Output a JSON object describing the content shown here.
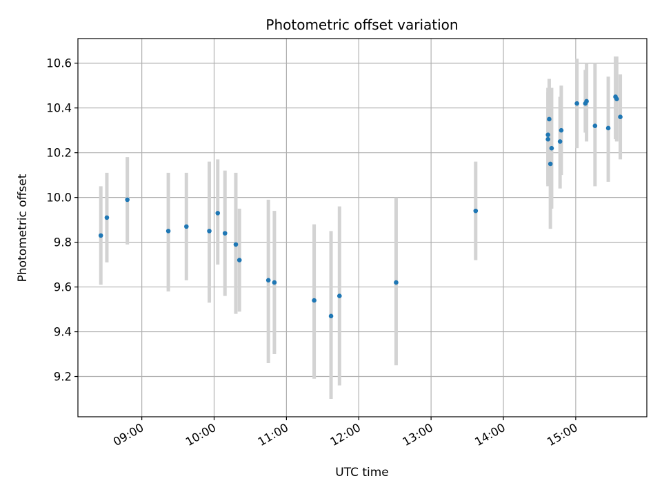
{
  "chart_data": {
    "type": "scatter",
    "title": "Photometric offset variation",
    "xlabel": "UTC time",
    "ylabel": "Photometric offset",
    "grid": true,
    "xlim": [
      "08:07",
      "15:59"
    ],
    "ylim": [
      9.02,
      10.71
    ],
    "x_ticks": [
      "09:00",
      "10:00",
      "11:00",
      "12:00",
      "13:00",
      "14:00",
      "15:00"
    ],
    "y_ticks": [
      "9.2",
      "9.4",
      "9.6",
      "9.8",
      "10.0",
      "10.2",
      "10.4",
      "10.6"
    ],
    "colors": {
      "point": "#1f77b4",
      "errorbar": "#d3d3d3",
      "grid": "#b0b0b0"
    },
    "points": [
      {
        "x": "08:26",
        "y": 9.83,
        "err_low": 9.61,
        "err_high": 10.05
      },
      {
        "x": "08:31",
        "y": 9.91,
        "err_low": 9.71,
        "err_high": 10.11
      },
      {
        "x": "08:48",
        "y": 9.99,
        "err_low": 9.79,
        "err_high": 10.18
      },
      {
        "x": "09:22",
        "y": 9.85,
        "err_low": 9.58,
        "err_high": 10.11
      },
      {
        "x": "09:37",
        "y": 9.87,
        "err_low": 9.63,
        "err_high": 10.11
      },
      {
        "x": "09:56",
        "y": 9.85,
        "err_low": 9.53,
        "err_high": 10.16
      },
      {
        "x": "10:03",
        "y": 9.93,
        "err_low": 9.7,
        "err_high": 10.17
      },
      {
        "x": "10:09",
        "y": 9.84,
        "err_low": 9.56,
        "err_high": 10.12
      },
      {
        "x": "10:18",
        "y": 9.79,
        "err_low": 9.48,
        "err_high": 10.11
      },
      {
        "x": "10:21",
        "y": 9.72,
        "err_low": 9.49,
        "err_high": 9.95
      },
      {
        "x": "10:45",
        "y": 9.63,
        "err_low": 9.26,
        "err_high": 9.99
      },
      {
        "x": "10:50",
        "y": 9.62,
        "err_low": 9.3,
        "err_high": 9.94
      },
      {
        "x": "11:23",
        "y": 9.54,
        "err_low": 9.19,
        "err_high": 9.88
      },
      {
        "x": "11:37",
        "y": 9.47,
        "err_low": 9.1,
        "err_high": 9.85
      },
      {
        "x": "11:44",
        "y": 9.56,
        "err_low": 9.16,
        "err_high": 9.96
      },
      {
        "x": "12:31",
        "y": 9.62,
        "err_low": 9.25,
        "err_high": 10.0
      },
      {
        "x": "13:37",
        "y": 9.94,
        "err_low": 9.72,
        "err_high": 10.16
      },
      {
        "x": "14:37",
        "y": 10.26,
        "err_low": 10.05,
        "err_high": 10.47
      },
      {
        "x": "14:37",
        "y": 10.28,
        "err_low": 10.06,
        "err_high": 10.49
      },
      {
        "x": "14:38",
        "y": 10.35,
        "err_low": 10.16,
        "err_high": 10.53
      },
      {
        "x": "14:39",
        "y": 10.15,
        "err_low": 9.86,
        "err_high": 10.44
      },
      {
        "x": "14:40",
        "y": 10.22,
        "err_low": 9.95,
        "err_high": 10.49
      },
      {
        "x": "14:47",
        "y": 10.25,
        "err_low": 10.04,
        "err_high": 10.45
      },
      {
        "x": "14:48",
        "y": 10.3,
        "err_low": 10.1,
        "err_high": 10.5
      },
      {
        "x": "15:01",
        "y": 10.42,
        "err_low": 10.22,
        "err_high": 10.62
      },
      {
        "x": "15:08",
        "y": 10.42,
        "err_low": 10.29,
        "err_high": 10.57
      },
      {
        "x": "15:09",
        "y": 10.43,
        "err_low": 10.25,
        "err_high": 10.6
      },
      {
        "x": "15:16",
        "y": 10.32,
        "err_low": 10.05,
        "err_high": 10.6
      },
      {
        "x": "15:27",
        "y": 10.31,
        "err_low": 10.07,
        "err_high": 10.54
      },
      {
        "x": "15:33",
        "y": 10.45,
        "err_low": 10.26,
        "err_high": 10.63
      },
      {
        "x": "15:34",
        "y": 10.44,
        "err_low": 10.25,
        "err_high": 10.63
      },
      {
        "x": "15:37",
        "y": 10.36,
        "err_low": 10.17,
        "err_high": 10.55
      }
    ]
  }
}
